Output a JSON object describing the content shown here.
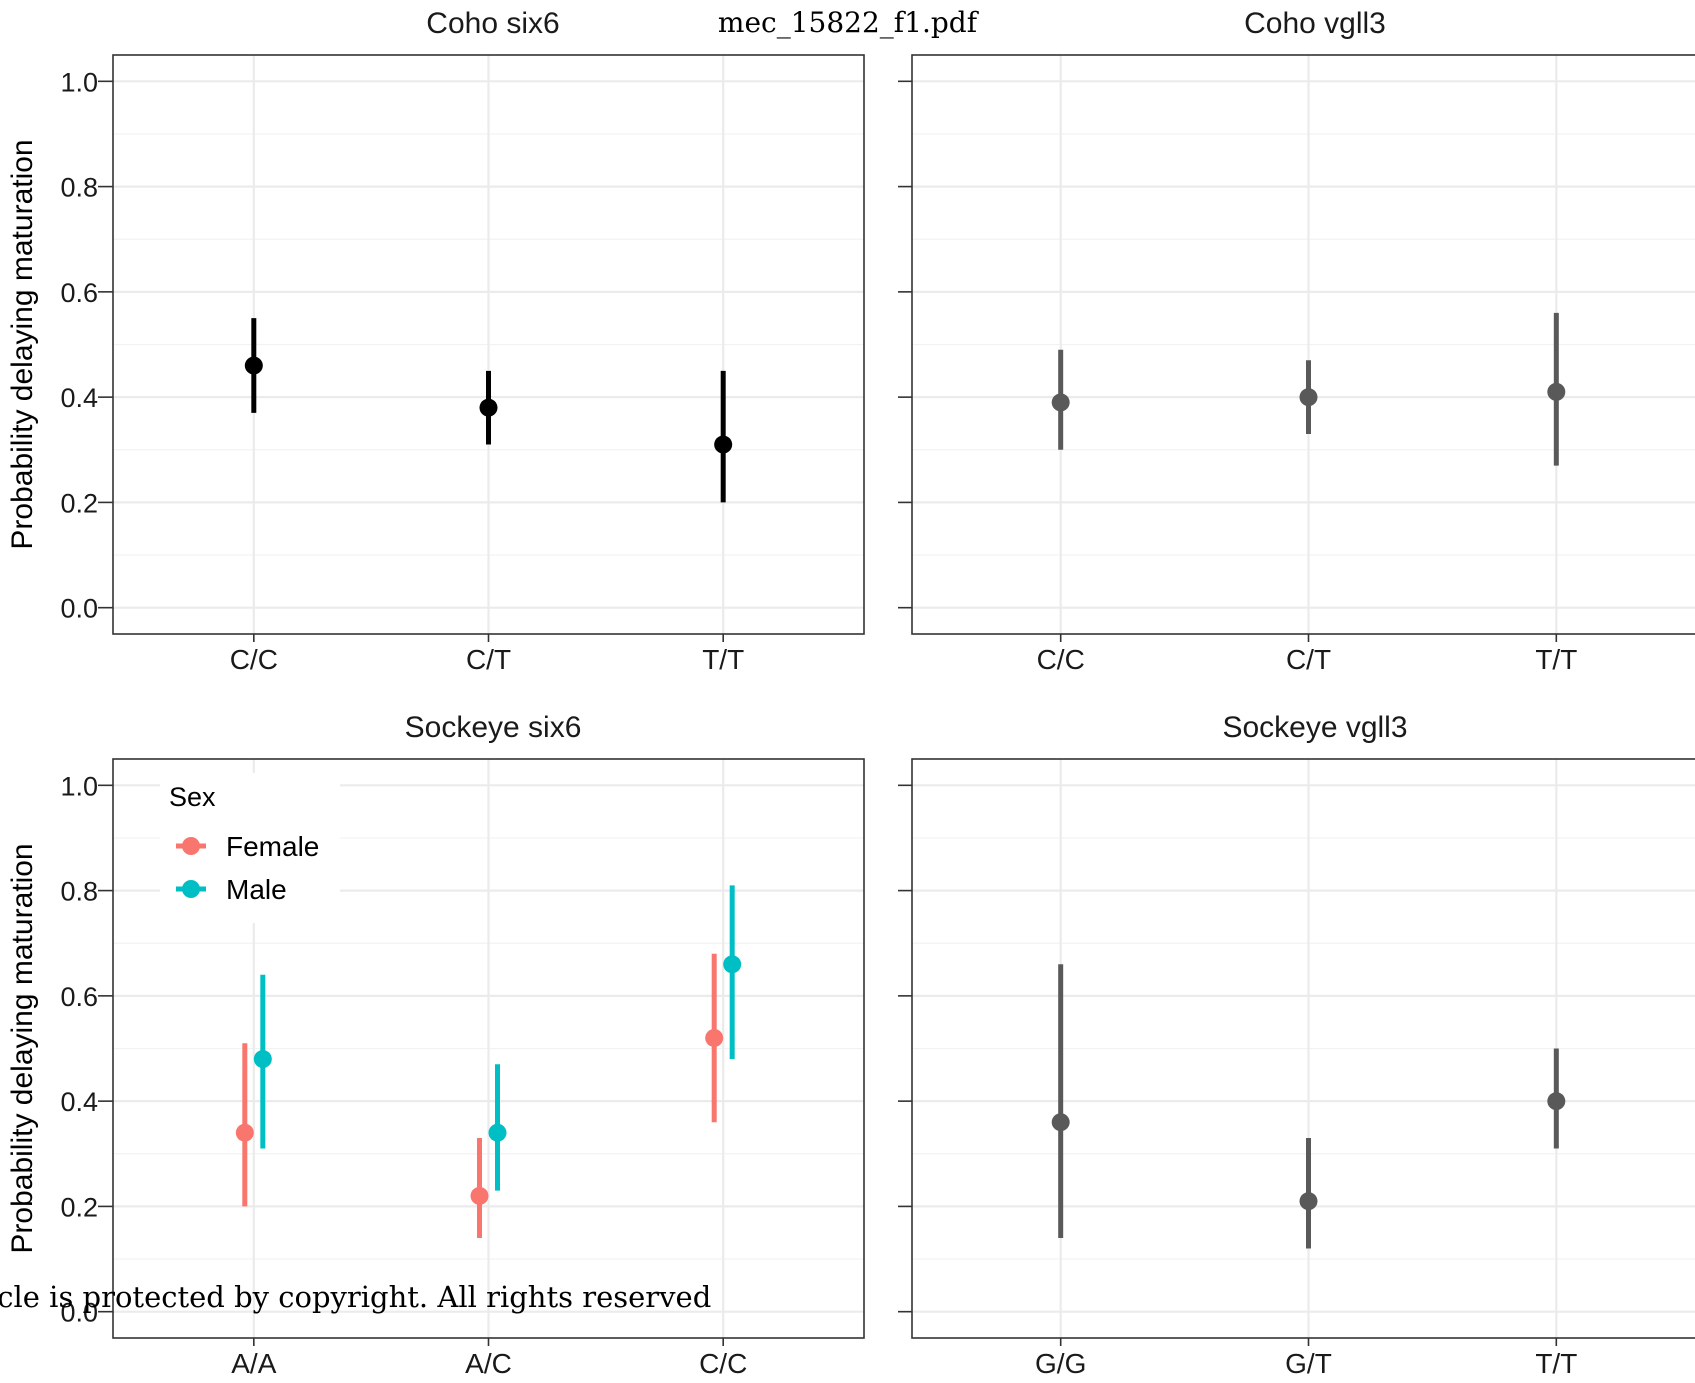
{
  "document": {
    "file_label": "mec_15822_f1.pdf",
    "copyright_text": "icle is protected by copyright. All rights reserved"
  },
  "colors": {
    "female": "#F8766D",
    "male": "#00BFC4",
    "coho_six6": "#000000",
    "single_series": "#595959",
    "grid": "#EBEBEB",
    "panel_border": "#333333"
  },
  "legend": {
    "title": "Sex",
    "items": [
      "Female",
      "Male"
    ]
  },
  "chart_data": [
    {
      "type": "scatter",
      "title": "Coho six6",
      "ylabel": "Probability delaying maturation",
      "ylim": [
        -0.05,
        1.05
      ],
      "yticks": [
        "0.0",
        "0.2",
        "0.4",
        "0.6",
        "0.8",
        "1.0"
      ],
      "categories": [
        "C/C",
        "C/T",
        "T/T"
      ],
      "series": [
        {
          "values": [
            0.46,
            0.38,
            0.31
          ],
          "lower": [
            0.37,
            0.31,
            0.2
          ],
          "upper": [
            0.55,
            0.45,
            0.45
          ]
        }
      ],
      "grid": true,
      "show_y_labels": true
    },
    {
      "type": "scatter",
      "title": "Coho vgll3",
      "ylim": [
        -0.05,
        1.05
      ],
      "categories": [
        "C/C",
        "C/T",
        "T/T"
      ],
      "series": [
        {
          "values": [
            0.39,
            0.4,
            0.41
          ],
          "lower": [
            0.3,
            0.33,
            0.27
          ],
          "upper": [
            0.49,
            0.47,
            0.56
          ]
        }
      ],
      "grid": true,
      "show_y_labels": false
    },
    {
      "type": "scatter",
      "title": "Sockeye six6",
      "ylabel": "Probability delaying maturation",
      "ylim": [
        -0.05,
        1.05
      ],
      "yticks": [
        "0.0",
        "0.2",
        "0.4",
        "0.6",
        "0.8",
        "1.0"
      ],
      "categories": [
        "A/A",
        "A/C",
        "C/C"
      ],
      "series": [
        {
          "name": "Female",
          "values": [
            0.34,
            0.22,
            0.52
          ],
          "lower": [
            0.2,
            0.14,
            0.36
          ],
          "upper": [
            0.51,
            0.33,
            0.68
          ]
        },
        {
          "name": "Male",
          "values": [
            0.48,
            0.34,
            0.66
          ],
          "lower": [
            0.31,
            0.23,
            0.48
          ],
          "upper": [
            0.64,
            0.47,
            0.81
          ]
        }
      ],
      "legend_position": "top-left",
      "grid": true,
      "show_y_labels": true
    },
    {
      "type": "scatter",
      "title": "Sockeye vgll3",
      "ylim": [
        -0.05,
        1.05
      ],
      "categories": [
        "G/G",
        "G/T",
        "T/T"
      ],
      "series": [
        {
          "values": [
            0.36,
            0.21,
            0.4
          ],
          "lower": [
            0.14,
            0.12,
            0.31
          ],
          "upper": [
            0.66,
            0.33,
            0.5
          ]
        }
      ],
      "grid": true,
      "show_y_labels": false
    }
  ]
}
